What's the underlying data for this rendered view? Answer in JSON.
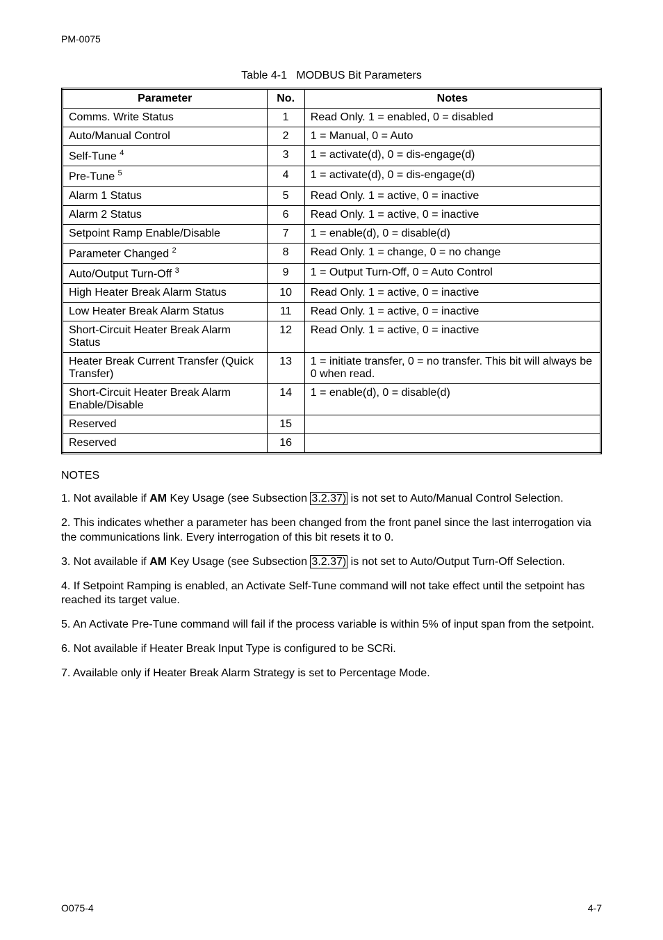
{
  "header": {
    "doc_id": "PM-0075"
  },
  "table": {
    "caption_prefix": "Table 4-1",
    "caption_title": "MODBUS Bit Parameters",
    "headers": {
      "param": "Parameter",
      "no": "No.",
      "notes": "Notes"
    },
    "rows": [
      {
        "param": "Comms. Write Status",
        "sup": "",
        "no": "1",
        "notes": "Read Only. 1 = enabled, 0 = disabled"
      },
      {
        "param": "Auto/Manual Control",
        "sup": "",
        "no": "2",
        "notes": "1 = Manual, 0 = Auto"
      },
      {
        "param": "Self-Tune ",
        "sup": "4",
        "no": "3",
        "notes": "1 = activate(d), 0 = dis-engage(d)"
      },
      {
        "param": "Pre-Tune ",
        "sup": "5",
        "no": "4",
        "notes": "1 = activate(d), 0 = dis-engage(d)"
      },
      {
        "param": "Alarm 1 Status",
        "sup": "",
        "no": "5",
        "notes": "Read Only. 1 = active, 0 = inactive"
      },
      {
        "param": "Alarm 2 Status",
        "sup": "",
        "no": "6",
        "notes": "Read Only. 1 = active, 0 = inactive"
      },
      {
        "param": "Setpoint Ramp Enable/Disable",
        "sup": "",
        "no": "7",
        "notes": "1 = enable(d), 0 = disable(d)"
      },
      {
        "param": "Parameter Changed ",
        "sup": "2",
        "no": "8",
        "notes": "Read Only. 1 = change, 0 = no change"
      },
      {
        "param": "Auto/Output Turn-Off ",
        "sup": "3",
        "no": "9",
        "notes": "1 = Output Turn-Off, 0 = Auto Control"
      },
      {
        "param": "High Heater Break Alarm Status",
        "sup": "",
        "no": "10",
        "notes": "Read Only. 1 = active, 0 = inactive"
      },
      {
        "param": "Low Heater Break Alarm Status",
        "sup": "",
        "no": "11",
        "notes": "Read Only. 1 = active, 0 = inactive"
      },
      {
        "param": "Short-Circuit Heater Break Alarm Status",
        "sup": "",
        "no": "12",
        "notes": "Read Only. 1 = active, 0 = inactive"
      },
      {
        "param": "Heater Break Current Transfer (Quick Transfer)",
        "sup": "",
        "no": "13",
        "notes": "1 = initiate transfer, 0 = no transfer. This bit will always be 0 when read."
      },
      {
        "param": "Short-Circuit Heater Break Alarm Enable/Disable",
        "sup": "",
        "no": "14",
        "notes": "1 = enable(d), 0 = disable(d)"
      },
      {
        "param": "Reserved",
        "sup": "",
        "no": "15",
        "notes": ""
      },
      {
        "param": "Reserved",
        "sup": "",
        "no": "16",
        "notes": ""
      }
    ]
  },
  "notes": {
    "heading": "NOTES",
    "n1": {
      "pre": "1. Not available if ",
      "bold": "AM",
      "mid": " Key Usage (see Subsection ",
      "ref": "3.2.37)",
      "post": " is not set to Auto/Manual Control Selection."
    },
    "n2": "2. This indicates whether a parameter has been changed from the front panel since the last interrogation via the communications link. Every interrogation of this bit resets it to 0.",
    "n3": {
      "pre": "3. Not available if ",
      "bold": "AM",
      "mid": " Key Usage (see Subsection ",
      "ref": "3.2.37)",
      "post": " is not set to Auto/Output Turn-Off Selection."
    },
    "n4": "4. If Setpoint Ramping is enabled, an Activate Self-Tune command will not take effect until the setpoint has reached its target value.",
    "n5": "5. An Activate Pre-Tune command will fail if the process variable is within 5% of input span from the setpoint.",
    "n6": "6. Not available if Heater Break Input Type is configured to be SCRi.",
    "n7": "7. Available only if Heater Break Alarm Strategy is set to Percentage Mode."
  },
  "footer": {
    "left": "O075-4",
    "right": "4-7"
  }
}
